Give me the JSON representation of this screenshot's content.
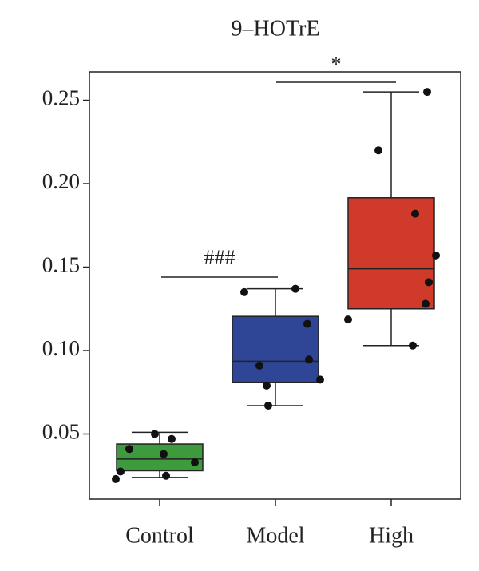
{
  "chart_data": {
    "type": "box",
    "title": "9–HOTrE",
    "categories": [
      "Control",
      "Model",
      "High"
    ],
    "boxes": [
      {
        "color": "#3d9a3d",
        "whislo": 0.024,
        "q1": 0.028,
        "median": 0.035,
        "q3": 0.044,
        "whishi": 0.051,
        "points": [
          0.023,
          0.0275,
          0.041,
          0.05,
          0.038,
          0.047,
          0.025,
          0.033
        ]
      },
      {
        "color": "#2f4596",
        "whislo": 0.067,
        "q1": 0.081,
        "median": 0.0936,
        "q3": 0.1205,
        "whishi": 0.137,
        "points": [
          0.135,
          0.091,
          0.079,
          0.067,
          0.137,
          0.116,
          0.0946,
          0.0826
        ]
      },
      {
        "color": "#d03a2a",
        "whislo": 0.103,
        "q1": 0.125,
        "median": 0.149,
        "q3": 0.1915,
        "whishi": 0.255,
        "points": [
          0.1186,
          0.22,
          0.103,
          0.182,
          0.255,
          0.157,
          0.141,
          0.128
        ]
      }
    ],
    "annotations": [
      "###",
      "*"
    ],
    "ylim": [
      0.011,
      0.267
    ],
    "yticks": [
      0.05,
      0.1,
      0.15,
      0.2,
      0.25
    ],
    "ytick_labels": [
      "0.05",
      "0.10",
      "0.15",
      "0.20",
      "0.25"
    ]
  }
}
